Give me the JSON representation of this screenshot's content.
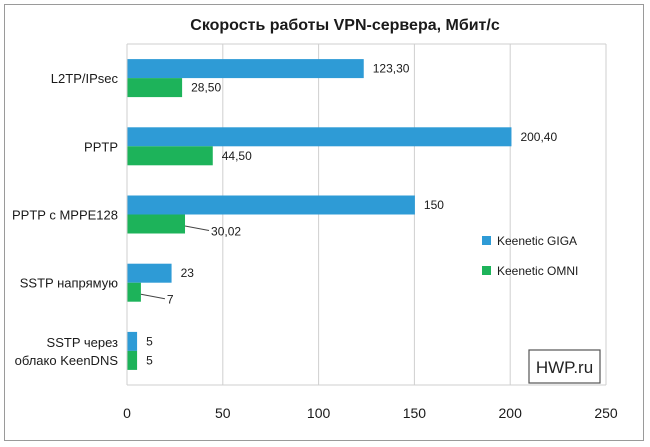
{
  "chart_data": {
    "type": "bar",
    "orientation": "horizontal",
    "title": "Скорость работы VPN-сервера, Мбит/с",
    "categories": [
      "L2TP/IPsec",
      "PPTP",
      "PPTP с MPPE128",
      "SSTP напрямую",
      "SSTP через облако KeenDNS"
    ],
    "category_lines": [
      [
        "L2TP/IPsec"
      ],
      [
        "PPTP"
      ],
      [
        "PPTP с MPPE128"
      ],
      [
        "SSTP напрямую"
      ],
      [
        "SSTP через",
        "облако KeenDNS"
      ]
    ],
    "series": [
      {
        "name": "Keenetic GIGA",
        "color": "#2e9bd6",
        "values": [
          123.3,
          200.4,
          150,
          23,
          5
        ],
        "labels": [
          "123,30",
          "200,40",
          "150",
          "23",
          "5"
        ]
      },
      {
        "name": "Keenetic OMNI",
        "color": "#1db35a",
        "values": [
          28.5,
          44.5,
          30.02,
          7,
          5
        ],
        "labels": [
          "28,50",
          "44,50",
          "30,02",
          "7",
          "5"
        ]
      }
    ],
    "xlim": [
      0,
      250
    ],
    "xticks": [
      0,
      50,
      100,
      150,
      200,
      250
    ],
    "grid": true,
    "legend_position": "right"
  },
  "watermark": "HWP.ru"
}
